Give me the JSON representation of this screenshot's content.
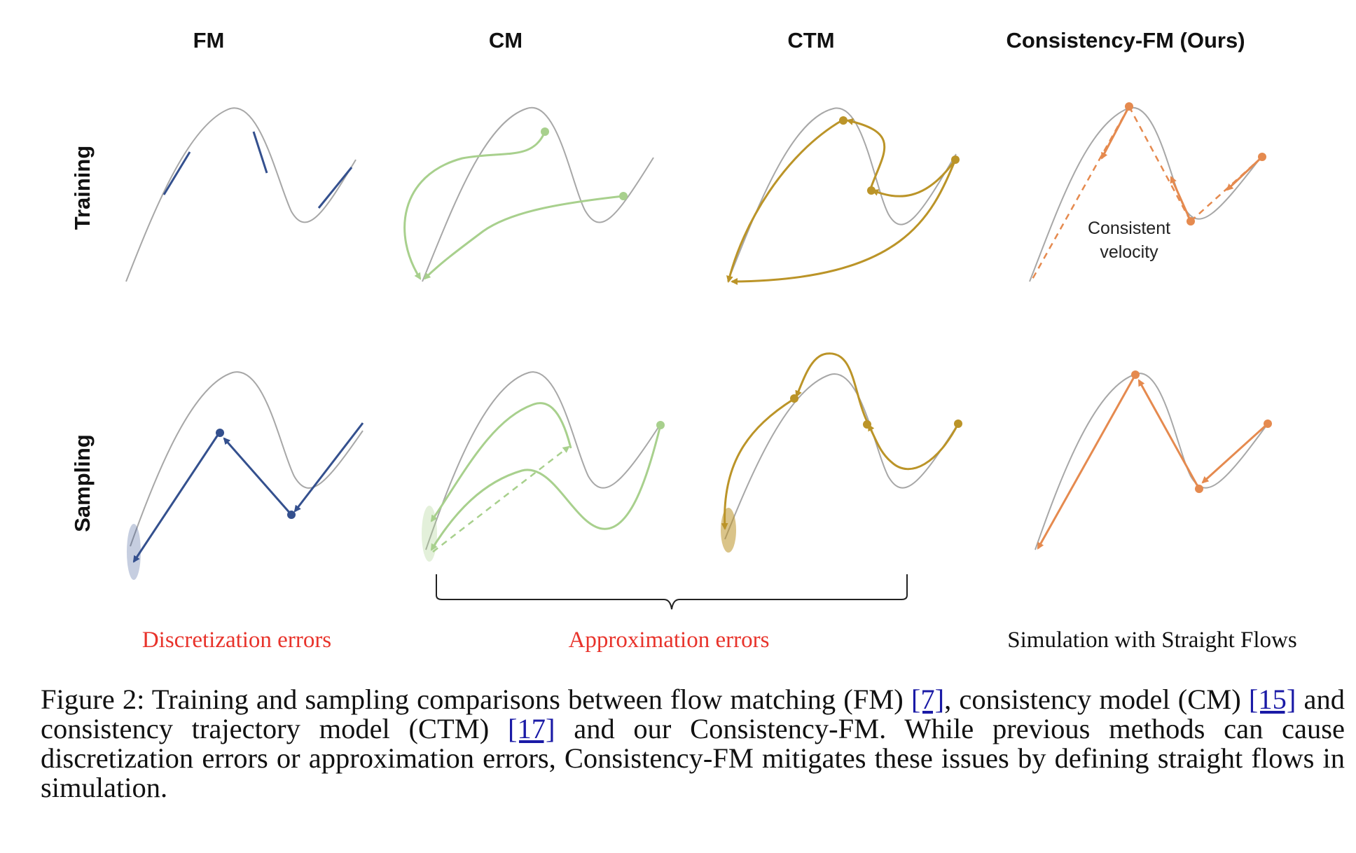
{
  "figure": {
    "column_titles": [
      "FM",
      "CM",
      "CTM",
      "Consistency-FM (Ours)"
    ],
    "row_labels": [
      "Training",
      "Sampling"
    ],
    "annotation_consistent": [
      "Consistent",
      "velocity"
    ],
    "error_labels": {
      "discretization": "Discretization errors",
      "approximation": "Approximation errors",
      "simulation": "Simulation with Straight Flows"
    },
    "colors": {
      "reference_curve": "#a7a7a7",
      "fm": "#34508e",
      "cm": "#a8d08d",
      "ctm": "#bb9428",
      "consistency_fm": "#e58a4f",
      "error_text": "#e8332b"
    }
  },
  "caption": {
    "part1": "Figure 2: Training and sampling comparisons between flow matching (FM) ",
    "ref1": "[7]",
    "part2": ", consistency model (CM) ",
    "ref2": "[15]",
    "part3": " and consistency trajectory model (CTM) ",
    "ref3": "[17]",
    "part4": " and our Consistency-FM. While previous methods can cause discretization errors or approximation errors, Consistency-FM mitigates these issues by defining straight flows in simulation."
  }
}
